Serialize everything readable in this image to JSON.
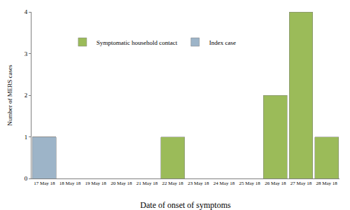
{
  "chart_data": {
    "type": "bar",
    "x_label": "Date of onset of symptoms",
    "y_label": "Number of MERS cases",
    "categories": [
      "17 May 18",
      "18 May 18",
      "19 May 18",
      "20 May 18",
      "21 May 18",
      "22 May 18",
      "23 May 18",
      "24 May 18",
      "25 May 18",
      "26 May 18",
      "27 May 18",
      "28 May 18"
    ],
    "series": [
      {
        "name": "Index case",
        "color": "#9db4c8",
        "values": [
          1,
          0,
          0,
          0,
          0,
          0,
          0,
          0,
          0,
          0,
          0,
          0
        ]
      },
      {
        "name": "Symptomatic household contact",
        "color": "#9bbb59",
        "values": [
          0,
          0,
          0,
          0,
          0,
          1,
          0,
          0,
          0,
          2,
          4,
          1
        ]
      }
    ],
    "ylim": [
      0,
      4
    ],
    "yticks": [
      0,
      1,
      2,
      3,
      4
    ],
    "stacked": true,
    "grid": false,
    "legend": "top"
  }
}
